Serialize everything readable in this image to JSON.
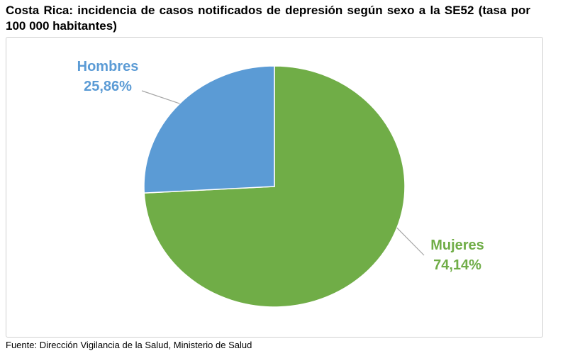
{
  "title": "Costa Rica: incidencia de casos notificados de depresión según sexo a la SE52 (tasa por 100 000 habitantes)",
  "source": "Fuente: Dirección Vigilancia de la Salud, Ministerio de Salud",
  "chart_data": {
    "type": "pie",
    "title": "Costa Rica: incidencia de casos notificados de depresión según sexo a la SE52 (tasa por 100 000 habitantes)",
    "slices": [
      {
        "label": "Mujeres",
        "value": 74.14,
        "value_label": "74,14%",
        "color": "#70ad47"
      },
      {
        "label": "Hombres",
        "value": 25.86,
        "value_label": "25,86%",
        "color": "#5b9bd5"
      }
    ],
    "start_angle": "12 o'clock",
    "direction": "clockwise",
    "legend": "none",
    "data_labels": "outside with leader lines"
  }
}
